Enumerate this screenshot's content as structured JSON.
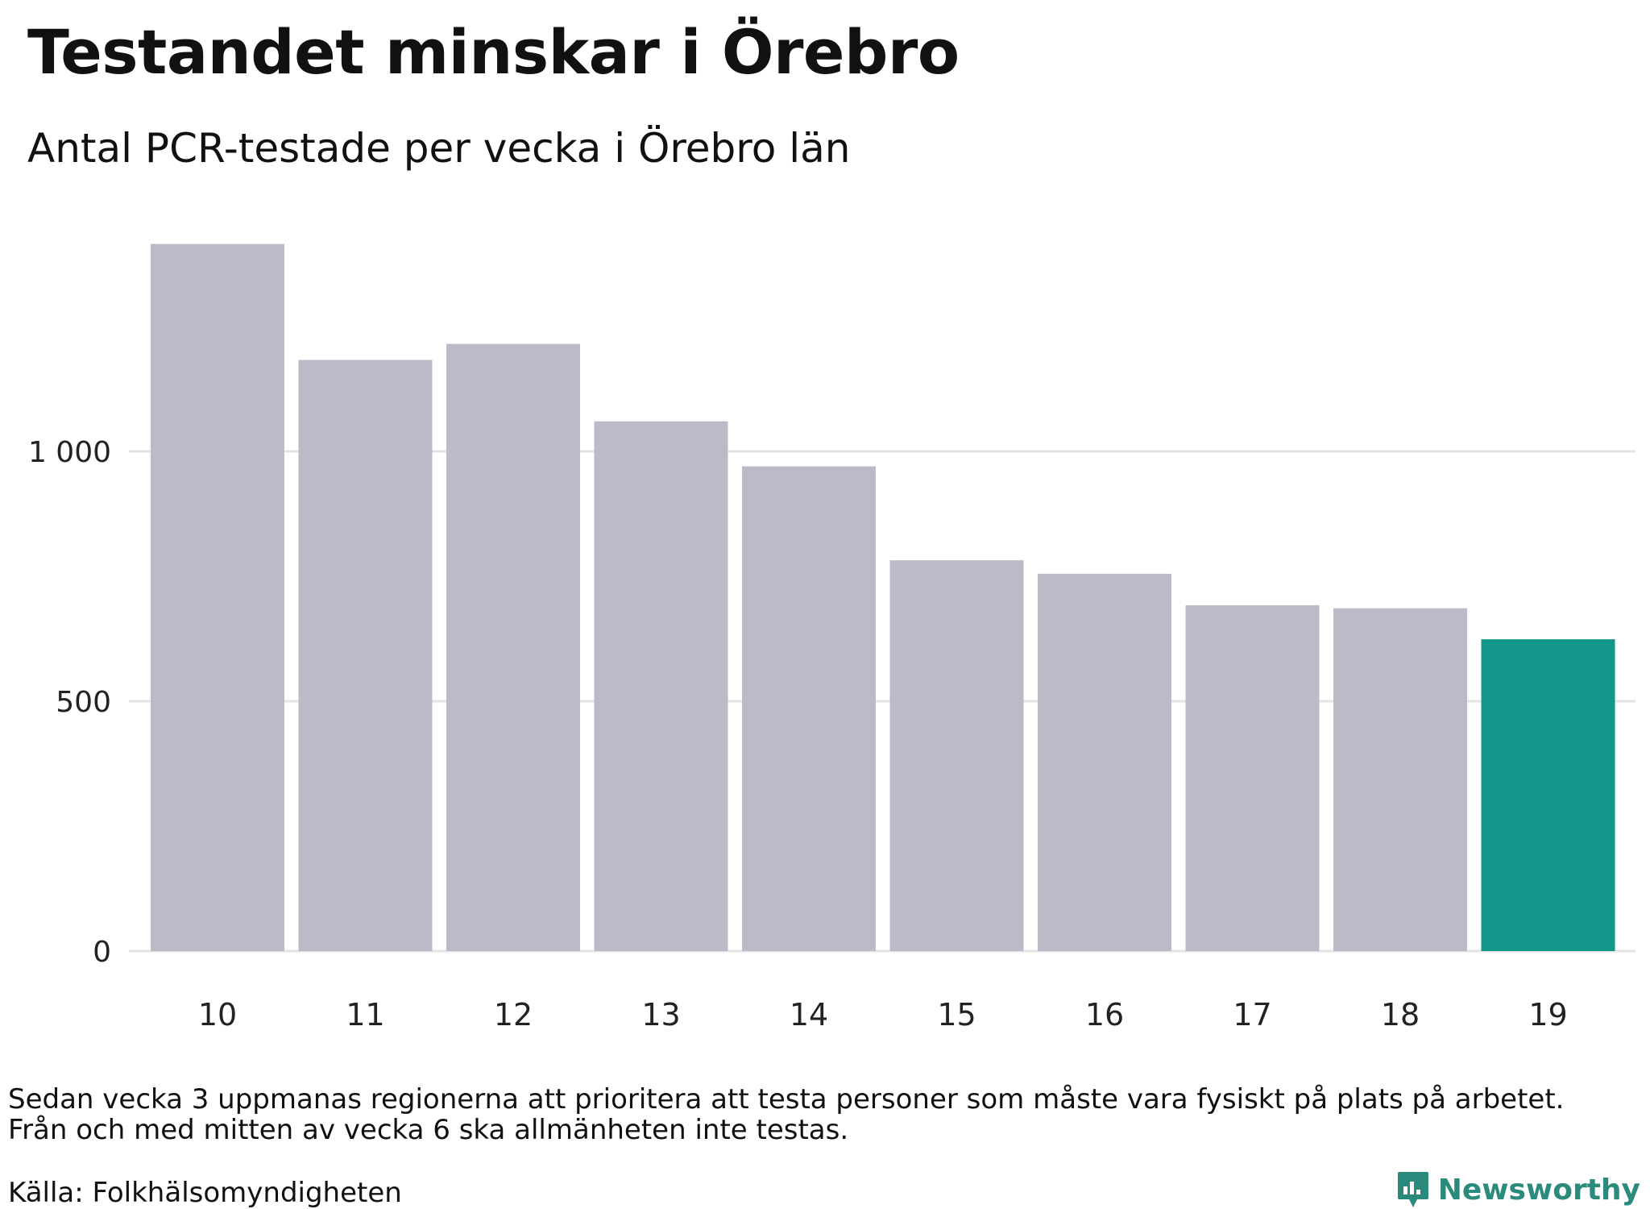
{
  "title": "Testandet minskar i Örebro",
  "subtitle": "Antal PCR-testade per vecka i Örebro län",
  "footnote": {
    "line1": "Sedan vecka 3 uppmanas regionerna att prioritera att testa personer som måste vara fysiskt på plats på arbetet.",
    "line2": "Från och med mitten av vecka 6 ska allmänheten inte testas."
  },
  "source": "Källa: Folkhälsomyndigheten",
  "brand": {
    "name": "Newsworthy",
    "icon": "newsworthy-logo-icon",
    "color": "#2a8a7c"
  },
  "chart_data": {
    "type": "bar",
    "categories": [
      "10",
      "11",
      "12",
      "13",
      "14",
      "15",
      "16",
      "17",
      "18",
      "19"
    ],
    "values": [
      1415,
      1183,
      1215,
      1060,
      970,
      782,
      755,
      692,
      686,
      624
    ],
    "ylim": [
      0,
      1500
    ],
    "yticks": [
      0,
      500,
      1000
    ],
    "ytick_labels": [
      "0",
      "500",
      "1 000"
    ],
    "grid": true,
    "bar_color": "#bcbac8",
    "highlight_color": "#13968a",
    "highlight_index": 9,
    "gridline_color": "#e3e3e3"
  }
}
